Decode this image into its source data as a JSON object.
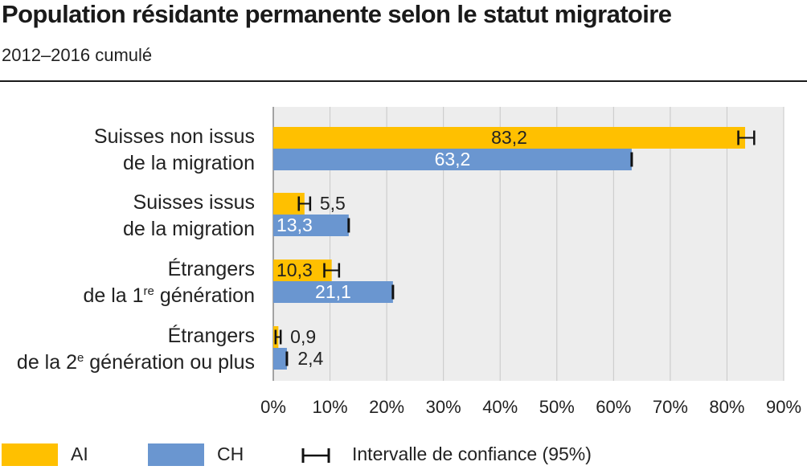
{
  "header": {
    "title": "Population résidante permanente selon le statut migratoire",
    "subtitle": "2012–2016 cumulé"
  },
  "colors": {
    "AI": "#FFC000",
    "CH": "#6A96D0",
    "grid": "#C8C8C8",
    "plot_bg": "#EDEDED",
    "text": "#222222"
  },
  "legend": {
    "items": [
      {
        "label": "AI",
        "color": "#FFC000"
      },
      {
        "label": "CH",
        "color": "#6A96D0"
      },
      {
        "label": "Intervalle de confiance (95%)",
        "icon": "error-bar-icon"
      }
    ]
  },
  "chart_data": {
    "type": "bar",
    "orientation": "horizontal",
    "title": "Population résidante permanente selon le statut migratoire",
    "subtitle": "2012–2016 cumulé",
    "categories": [
      {
        "line1": "Suisses non issus",
        "line2": "de la migration",
        "sup": "",
        "line2_rest": ""
      },
      {
        "line1": "Suisses issus",
        "line2": "de la migration",
        "sup": "",
        "line2_rest": ""
      },
      {
        "line1": "Étrangers",
        "line2": "de la 1",
        "sup": "re",
        "line2_rest": " génération"
      },
      {
        "line1": "Étrangers",
        "line2": "de la 2",
        "sup": "e",
        "line2_rest": " génération ou plus"
      }
    ],
    "series": [
      {
        "name": "AI",
        "values": [
          83.2,
          5.5,
          10.3,
          0.9
        ],
        "labels": [
          "83,2",
          "5,5",
          "10,3",
          "0,9"
        ],
        "ci": [
          [
            82.0,
            84.8
          ],
          [
            4.5,
            6.5
          ],
          [
            9.0,
            11.6
          ],
          [
            0.4,
            1.3
          ]
        ]
      },
      {
        "name": "CH",
        "values": [
          63.2,
          13.3,
          21.1,
          2.4
        ],
        "labels": [
          "63,2",
          "13,3",
          "21,1",
          "2,4"
        ],
        "ci": [
          [
            63.0,
            63.4
          ],
          [
            13.1,
            13.5
          ],
          [
            20.9,
            21.3
          ],
          [
            2.2,
            2.6
          ]
        ]
      }
    ],
    "xlim": [
      0,
      90
    ],
    "xticks": [
      "0%",
      "10%",
      "20%",
      "30%",
      "40%",
      "50%",
      "60%",
      "70%",
      "80%",
      "90%"
    ],
    "grid": true,
    "legend_position": "bottom"
  }
}
